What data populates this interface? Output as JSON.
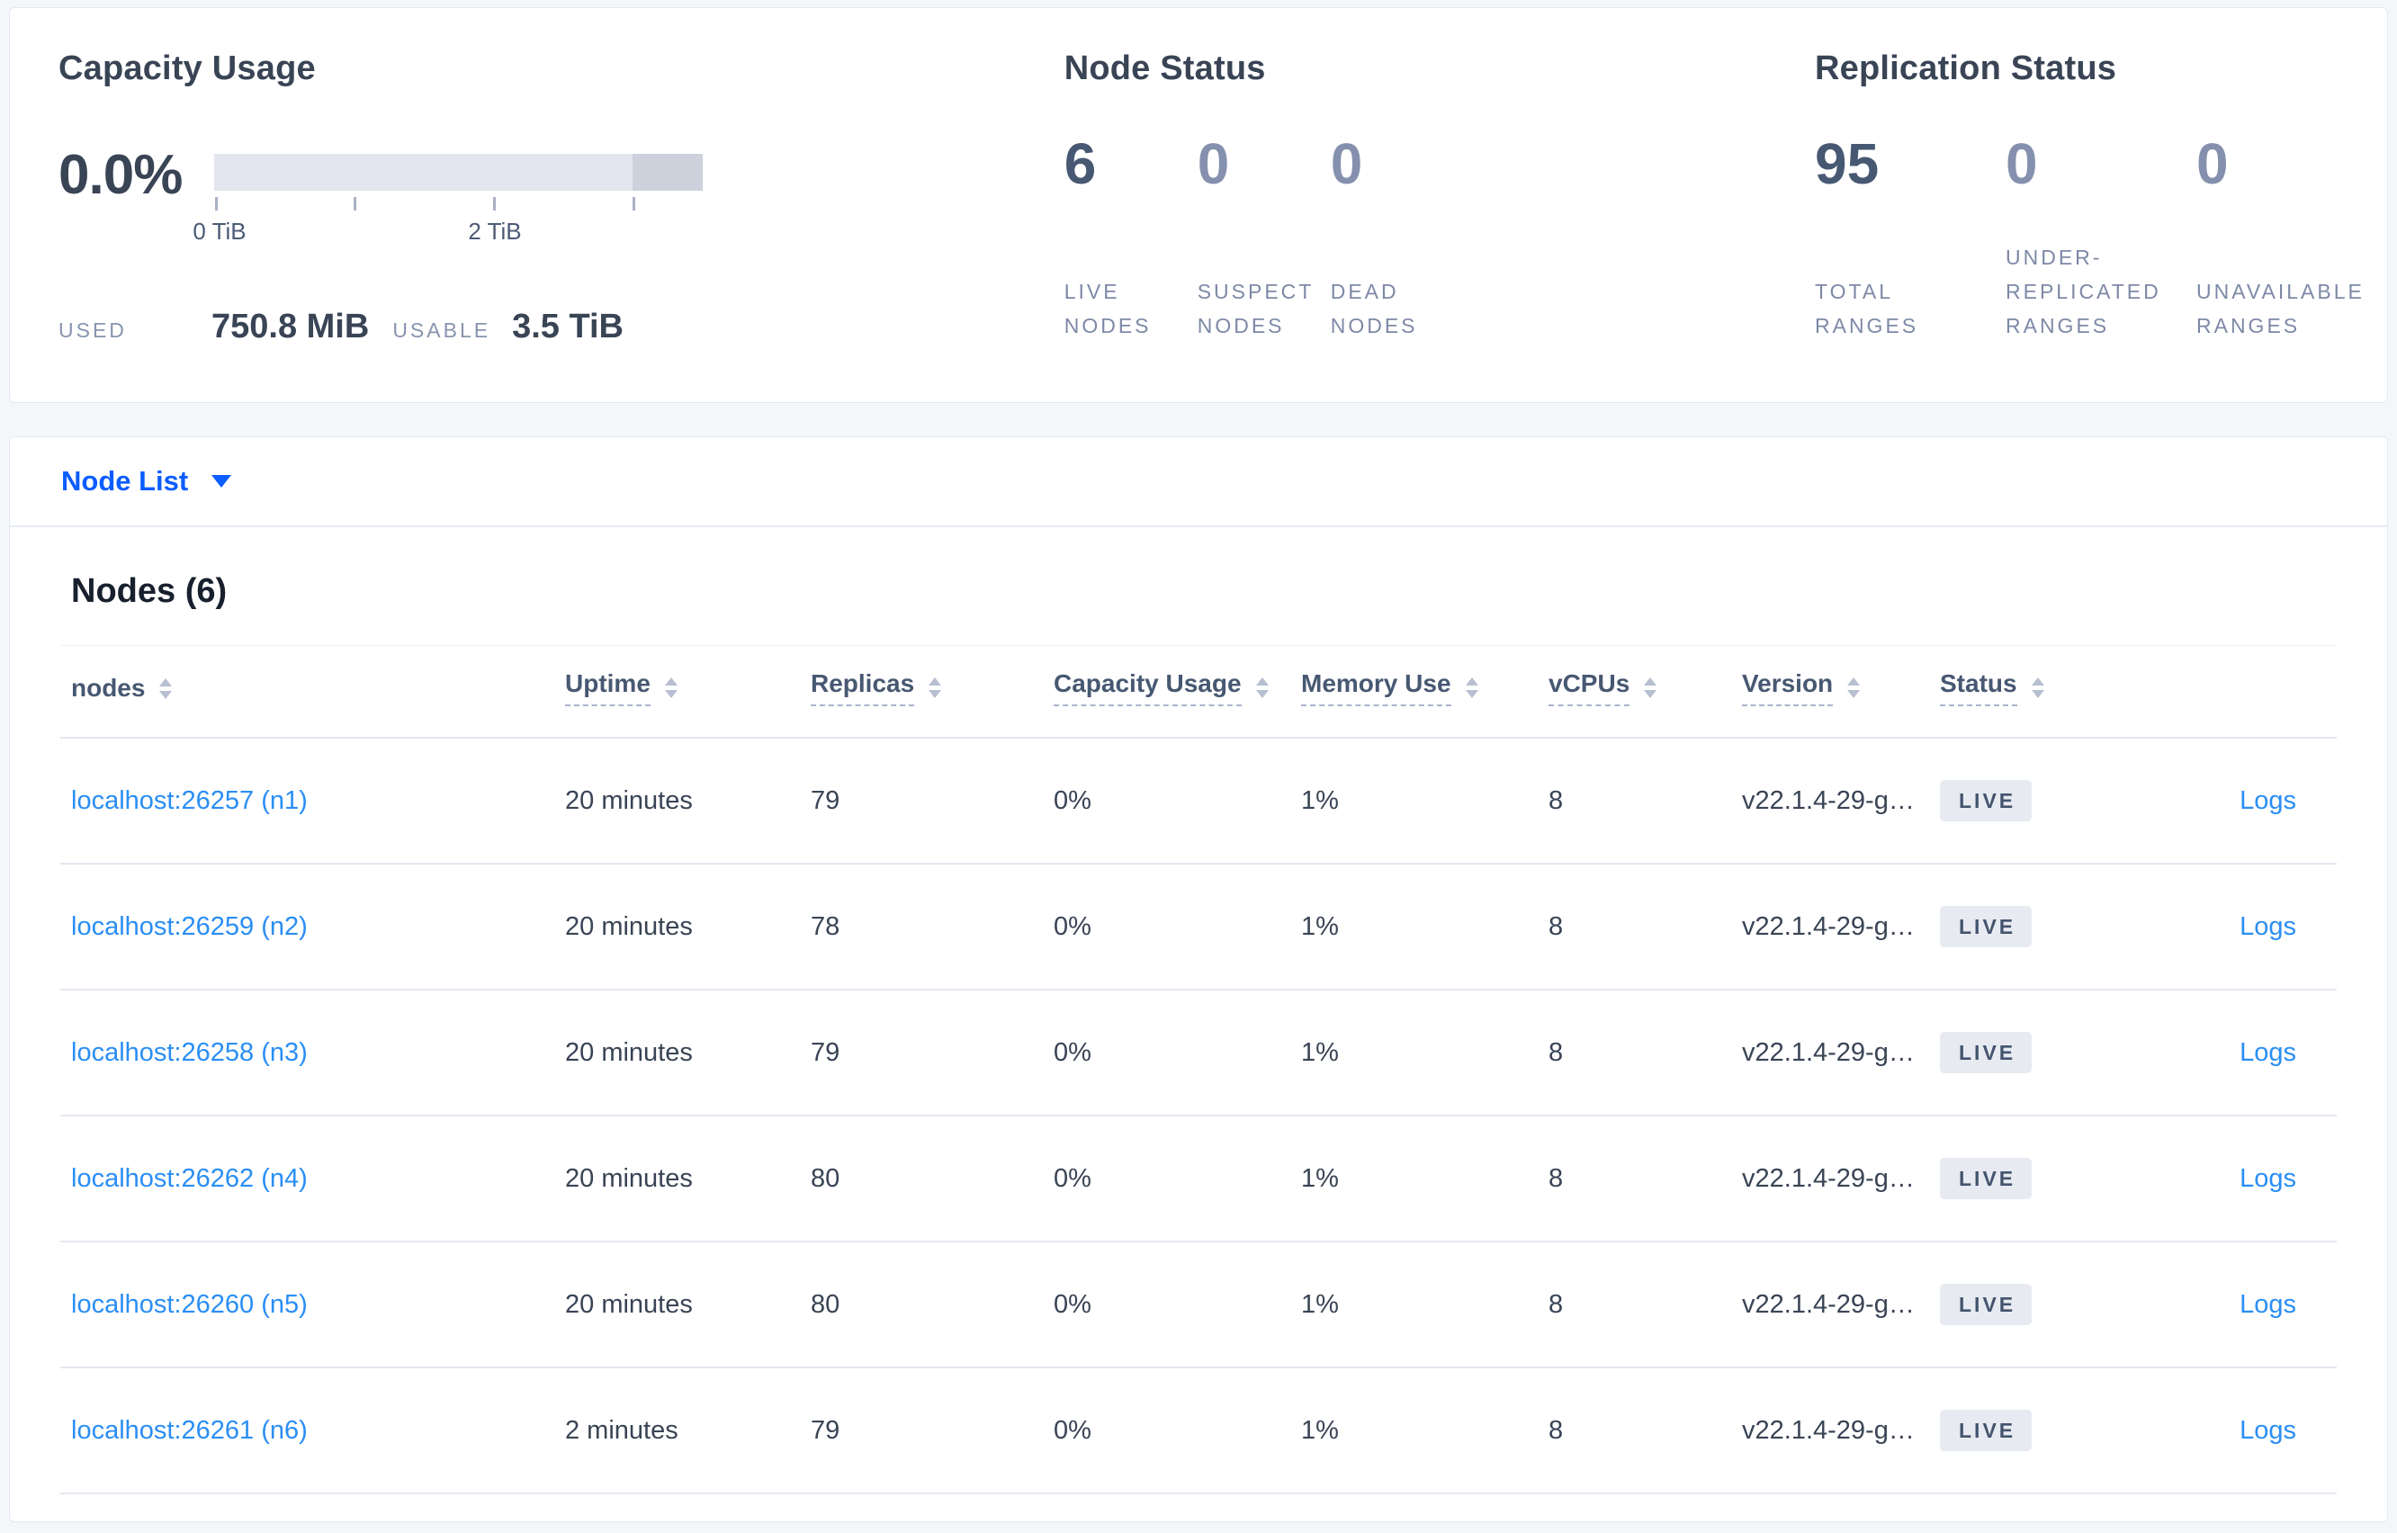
{
  "summary": {
    "capacity": {
      "title": "Capacity Usage",
      "percent": "0.0%",
      "axis": {
        "tick0": "0 TiB",
        "tick2": "2 TiB"
      },
      "used_label": "USED",
      "used_value": "750.8 MiB",
      "usable_label": "USABLE",
      "usable_value": "3.5 TiB"
    },
    "node_status": {
      "title": "Node Status",
      "stats": [
        {
          "value": "6",
          "label": "LIVE NODES",
          "emphasized": true
        },
        {
          "value": "0",
          "label": "SUSPECT NODES",
          "emphasized": false
        },
        {
          "value": "0",
          "label": "DEAD NODES",
          "emphasized": false
        }
      ]
    },
    "replication": {
      "title": "Replication Status",
      "stats": [
        {
          "value": "95",
          "label": "TOTAL RANGES",
          "emphasized": true
        },
        {
          "value": "0",
          "label": "UNDER-REPLICATED RANGES",
          "emphasized": false
        },
        {
          "value": "0",
          "label": "UNAVAILABLE RANGES",
          "emphasized": false
        }
      ]
    }
  },
  "node_list": {
    "selector_label": "Node List"
  },
  "nodes_table": {
    "heading": "Nodes (6)",
    "logs_label": "Logs",
    "columns": [
      {
        "label": "nodes",
        "tooltip": false,
        "sortable": true
      },
      {
        "label": "Uptime",
        "tooltip": true,
        "sortable": true
      },
      {
        "label": "Replicas",
        "tooltip": true,
        "sortable": true
      },
      {
        "label": "Capacity Usage",
        "tooltip": true,
        "sortable": true
      },
      {
        "label": "Memory Use",
        "tooltip": true,
        "sortable": true
      },
      {
        "label": "vCPUs",
        "tooltip": true,
        "sortable": true
      },
      {
        "label": "Version",
        "tooltip": true,
        "sortable": true
      },
      {
        "label": "Status",
        "tooltip": true,
        "sortable": true
      },
      {
        "label": "",
        "tooltip": false,
        "sortable": false
      }
    ],
    "rows": [
      {
        "address": "localhost:26257 (n1)",
        "uptime": "20 minutes",
        "replicas": "79",
        "capacity_usage": "0%",
        "memory_use": "1%",
        "vcpus": "8",
        "version": "v22.1.4-29-g…",
        "status": "LIVE"
      },
      {
        "address": "localhost:26259 (n2)",
        "uptime": "20 minutes",
        "replicas": "78",
        "capacity_usage": "0%",
        "memory_use": "1%",
        "vcpus": "8",
        "version": "v22.1.4-29-g…",
        "status": "LIVE"
      },
      {
        "address": "localhost:26258 (n3)",
        "uptime": "20 minutes",
        "replicas": "79",
        "capacity_usage": "0%",
        "memory_use": "1%",
        "vcpus": "8",
        "version": "v22.1.4-29-g…",
        "status": "LIVE"
      },
      {
        "address": "localhost:26262 (n4)",
        "uptime": "20 minutes",
        "replicas": "80",
        "capacity_usage": "0%",
        "memory_use": "1%",
        "vcpus": "8",
        "version": "v22.1.4-29-g…",
        "status": "LIVE"
      },
      {
        "address": "localhost:26260 (n5)",
        "uptime": "20 minutes",
        "replicas": "80",
        "capacity_usage": "0%",
        "memory_use": "1%",
        "vcpus": "8",
        "version": "v22.1.4-29-g…",
        "status": "LIVE"
      },
      {
        "address": "localhost:26261 (n6)",
        "uptime": "2 minutes",
        "replicas": "79",
        "capacity_usage": "0%",
        "memory_use": "1%",
        "vcpus": "8",
        "version": "v22.1.4-29-g…",
        "status": "LIVE"
      }
    ]
  },
  "colors": {
    "accent_blue": "#0b5dff",
    "link_blue": "#2a8ef4",
    "badge_bg": "#e7eaf1",
    "text_dark": "#394455"
  }
}
